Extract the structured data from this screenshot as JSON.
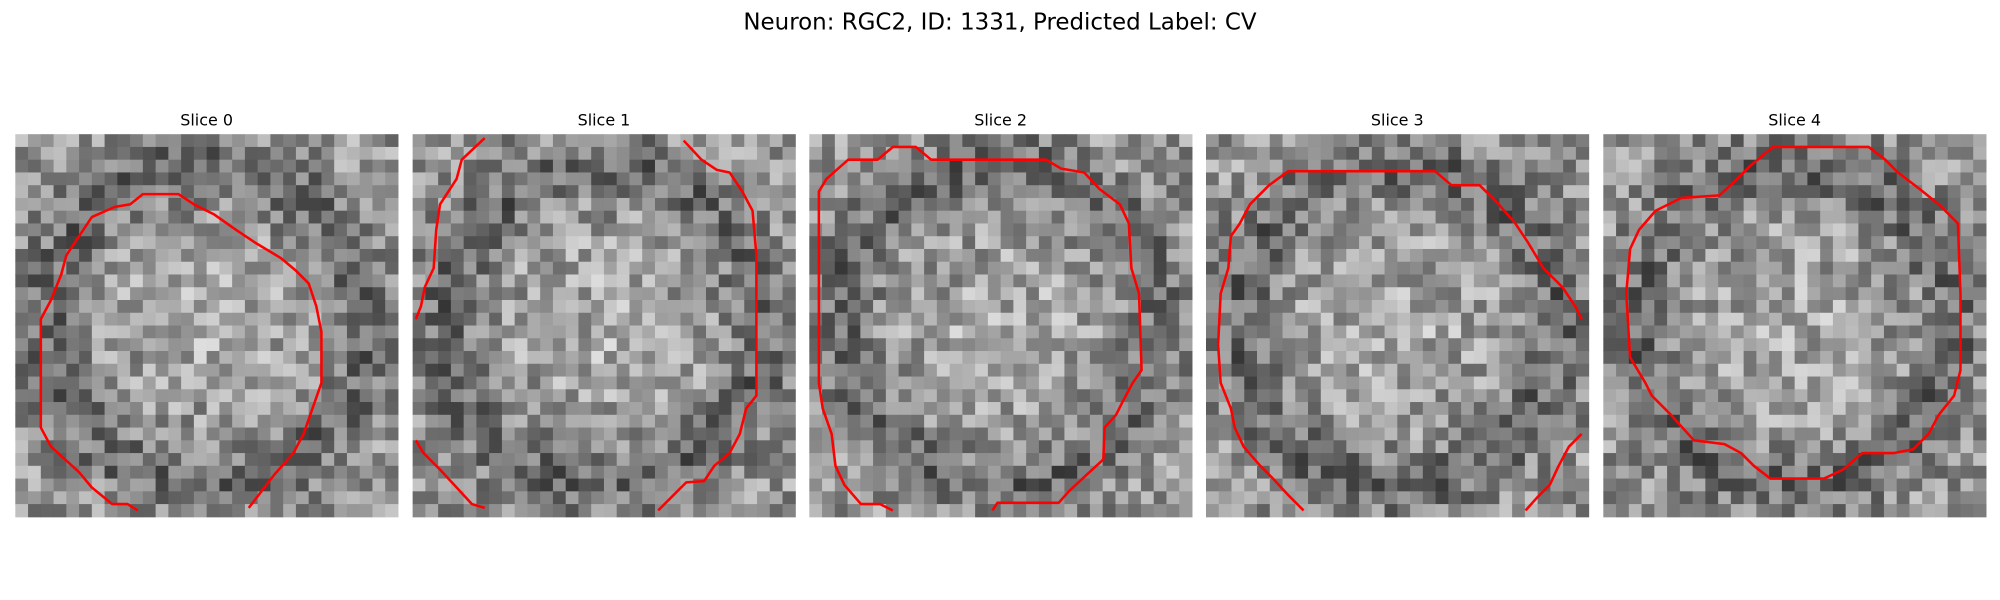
{
  "title": "Neuron: RGC2, ID: 1331, Predicted Label: CV",
  "panels": [
    {
      "title": "Slice 0"
    },
    {
      "title": "Slice 1"
    },
    {
      "title": "Slice 2"
    },
    {
      "title": "Slice 3"
    },
    {
      "title": "Slice 4"
    }
  ]
}
